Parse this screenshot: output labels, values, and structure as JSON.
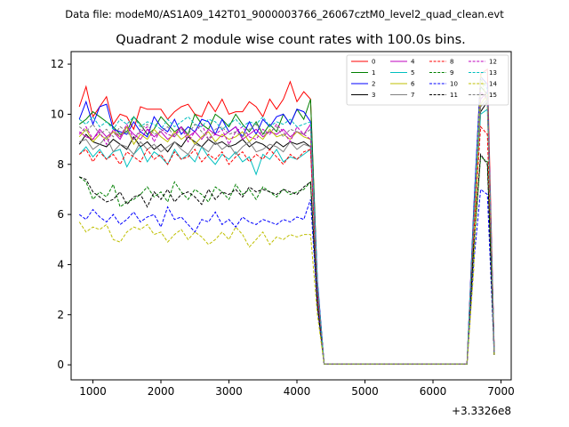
{
  "chart_data": {
    "type": "line",
    "suptitle": "Data file: modeM0/AS1A09_142T01_9000003766_26067cztM0_level2_quad_clean.evt",
    "title": "Quadrant 2 module wise count rates with 100.0s bins.",
    "xlabel": "",
    "ylabel": "",
    "x_offset_label": "+3.3326e8",
    "xlim": [
      680,
      7150
    ],
    "ylim": [
      -0.6,
      12.5
    ],
    "xticks": [
      1000,
      2000,
      3000,
      4000,
      5000,
      6000,
      7000
    ],
    "yticks": [
      0,
      2,
      4,
      6,
      8,
      10,
      12
    ],
    "grid": false,
    "legend_position": "top-right",
    "x": [
      800,
      900,
      1000,
      1100,
      1200,
      1300,
      1400,
      1500,
      1600,
      1700,
      1800,
      1900,
      2000,
      2100,
      2200,
      2300,
      2400,
      2500,
      2600,
      2700,
      2800,
      2900,
      3000,
      3100,
      3200,
      3300,
      3400,
      3500,
      3600,
      3700,
      3800,
      3900,
      4000,
      4100,
      4200,
      4300,
      4400,
      4500,
      4600,
      4700,
      4800,
      4900,
      5000,
      5100,
      5200,
      5300,
      5400,
      5500,
      5600,
      5700,
      5800,
      5900,
      6000,
      6100,
      6200,
      6300,
      6400,
      6500,
      6600,
      6700,
      6800,
      6900
    ],
    "series": [
      {
        "name": "0",
        "color": "#ff0000",
        "dash": "solid",
        "values": [
          10.3,
          11.1,
          9.9,
          10.3,
          10.7,
          9.6,
          10.0,
          9.9,
          9.4,
          10.3,
          10.2,
          10.2,
          10.2,
          9.8,
          10.1,
          10.3,
          10.4,
          10.0,
          9.9,
          10.5,
          10.1,
          10.6,
          10.0,
          10.1,
          10.1,
          10.5,
          10.3,
          9.9,
          10.6,
          10.2,
          10.6,
          11.3,
          10.5,
          10.9,
          10.6,
          3.2,
          0.03,
          0.03,
          0.03,
          0.03,
          0.03,
          0.03,
          0.03,
          0.03,
          0.03,
          0.03,
          0.03,
          0.03,
          0.03,
          0.03,
          0.03,
          0.03,
          0.03,
          0.03,
          0.03,
          0.03,
          0.03,
          0.03,
          6.2,
          11.6,
          11.8,
          0.6
        ]
      },
      {
        "name": "1",
        "color": "#008000",
        "dash": "solid",
        "values": [
          9.6,
          9.8,
          10.1,
          9.9,
          9.7,
          9.5,
          9.2,
          9.3,
          9.9,
          9.6,
          9.2,
          9.4,
          9.9,
          9.6,
          9.3,
          9.5,
          9.2,
          10.0,
          9.6,
          9.4,
          10.0,
          9.8,
          9.5,
          10.0,
          9.6,
          9.3,
          9.7,
          9.2,
          9.6,
          9.3,
          10.0,
          9.6,
          10.2,
          9.8,
          10.6,
          3.3,
          0.03,
          0.03,
          0.03,
          0.03,
          0.03,
          0.03,
          0.03,
          0.03,
          0.03,
          0.03,
          0.03,
          0.03,
          0.03,
          0.03,
          0.03,
          0.03,
          0.03,
          0.03,
          0.03,
          0.03,
          0.03,
          0.03,
          6.0,
          11.1,
          10.8,
          0.5
        ]
      },
      {
        "name": "2",
        "color": "#0000ff",
        "dash": "solid",
        "values": [
          9.8,
          10.5,
          9.6,
          10.3,
          10.4,
          9.4,
          9.3,
          9.2,
          9.7,
          9.3,
          9.1,
          9.9,
          9.5,
          9.3,
          9.8,
          9.2,
          9.5,
          9.3,
          9.8,
          9.7,
          9.2,
          9.8,
          9.3,
          9.5,
          9.1,
          9.7,
          9.2,
          9.8,
          9.5,
          9.9,
          10.0,
          9.6,
          10.2,
          10.1,
          9.7,
          3.4,
          0.03,
          0.03,
          0.03,
          0.03,
          0.03,
          0.03,
          0.03,
          0.03,
          0.03,
          0.03,
          0.03,
          0.03,
          0.03,
          0.03,
          0.03,
          0.03,
          0.03,
          0.03,
          0.03,
          0.03,
          0.03,
          0.03,
          6.3,
          11.5,
          11.2,
          0.5
        ]
      },
      {
        "name": "3",
        "color": "#000000",
        "dash": "solid",
        "values": [
          8.8,
          9.2,
          8.9,
          8.8,
          8.7,
          9.0,
          8.8,
          8.6,
          9.1,
          8.7,
          8.9,
          8.6,
          8.8,
          8.5,
          8.9,
          8.7,
          9.1,
          8.9,
          8.7,
          9.0,
          8.8,
          8.9,
          8.7,
          8.8,
          9.0,
          8.7,
          8.9,
          8.8,
          8.6,
          8.9,
          8.7,
          8.9,
          8.8,
          8.9,
          8.7,
          2.9,
          0.03,
          0.03,
          0.03,
          0.03,
          0.03,
          0.03,
          0.03,
          0.03,
          0.03,
          0.03,
          0.03,
          0.03,
          0.03,
          0.03,
          0.03,
          0.03,
          0.03,
          0.03,
          0.03,
          0.03,
          0.03,
          0.03,
          5.5,
          10.1,
          10.5,
          0.4
        ]
      },
      {
        "name": "4",
        "color": "#bf00bf",
        "dash": "solid",
        "values": [
          9.3,
          9.1,
          9.0,
          9.4,
          9.1,
          9.3,
          9.0,
          9.5,
          9.2,
          9.0,
          9.4,
          9.1,
          9.3,
          9.0,
          9.2,
          9.5,
          9.1,
          9.3,
          9.0,
          9.4,
          9.2,
          9.1,
          9.3,
          9.5,
          9.0,
          9.2,
          9.4,
          9.1,
          9.3,
          9.2,
          9.4,
          9.1,
          9.3,
          9.2,
          9.6,
          3.1,
          0.03,
          0.03,
          0.03,
          0.03,
          0.03,
          0.03,
          0.03,
          0.03,
          0.03,
          0.03,
          0.03,
          0.03,
          0.03,
          0.03,
          0.03,
          0.03,
          0.03,
          0.03,
          0.03,
          0.03,
          0.03,
          0.03,
          5.8,
          10.6,
          10.9,
          0.5
        ]
      },
      {
        "name": "5",
        "color": "#00bfbf",
        "dash": "solid",
        "values": [
          8.4,
          8.7,
          8.3,
          8.6,
          8.2,
          8.5,
          8.6,
          7.9,
          8.4,
          8.7,
          8.1,
          8.5,
          8.3,
          8.0,
          8.6,
          8.2,
          8.4,
          8.1,
          8.7,
          8.3,
          8.0,
          8.4,
          8.2,
          8.5,
          8.1,
          8.3,
          7.6,
          8.4,
          8.2,
          8.6,
          8.1,
          8.3,
          8.2,
          8.4,
          8.6,
          2.8,
          0.03,
          0.03,
          0.03,
          0.03,
          0.03,
          0.03,
          0.03,
          0.03,
          0.03,
          0.03,
          0.03,
          0.03,
          0.03,
          0.03,
          0.03,
          0.03,
          0.03,
          0.03,
          0.03,
          0.03,
          0.03,
          0.03,
          5.4,
          10.0,
          10.2,
          0.4
        ]
      },
      {
        "name": "6",
        "color": "#bfbf00",
        "dash": "solid",
        "values": [
          9.1,
          9.4,
          8.9,
          9.2,
          9.0,
          9.3,
          9.1,
          9.5,
          8.8,
          9.2,
          9.0,
          9.4,
          9.1,
          8.9,
          9.3,
          9.0,
          9.2,
          8.8,
          9.1,
          9.3,
          8.9,
          9.2,
          9.0,
          9.1,
          9.3,
          8.9,
          9.2,
          9.0,
          9.4,
          9.1,
          9.2,
          9.0,
          9.3,
          9.1,
          9.0,
          3.0,
          0.03,
          0.03,
          0.03,
          0.03,
          0.03,
          0.03,
          0.03,
          0.03,
          0.03,
          0.03,
          0.03,
          0.03,
          0.03,
          0.03,
          0.03,
          0.03,
          0.03,
          0.03,
          0.03,
          0.03,
          0.03,
          0.03,
          5.7,
          10.4,
          10.8,
          0.5
        ]
      },
      {
        "name": "7",
        "color": "#808080",
        "dash": "solid",
        "values": [
          8.9,
          9.0,
          8.6,
          8.8,
          9.1,
          8.5,
          8.8,
          8.7,
          8.4,
          8.9,
          8.6,
          8.8,
          8.5,
          8.7,
          8.9,
          8.6,
          8.4,
          8.8,
          8.7,
          8.5,
          8.9,
          8.6,
          8.8,
          8.4,
          8.7,
          8.9,
          8.5,
          8.6,
          8.8,
          8.7,
          8.5,
          8.9,
          8.6,
          8.8,
          8.7,
          2.9,
          0.03,
          0.03,
          0.03,
          0.03,
          0.03,
          0.03,
          0.03,
          0.03,
          0.03,
          0.03,
          0.03,
          0.03,
          0.03,
          0.03,
          0.03,
          0.03,
          0.03,
          0.03,
          0.03,
          0.03,
          0.03,
          0.03,
          5.6,
          10.3,
          10.6,
          0.4
        ]
      },
      {
        "name": "8",
        "color": "#ff0000",
        "dash": "dashed",
        "values": [
          8.4,
          8.6,
          8.1,
          8.5,
          8.2,
          8.4,
          8.0,
          8.5,
          8.3,
          8.1,
          8.6,
          8.2,
          8.4,
          8.0,
          8.5,
          8.2,
          8.3,
          8.6,
          8.1,
          8.4,
          8.2,
          8.5,
          8.0,
          8.3,
          8.5,
          8.1,
          8.4,
          8.2,
          8.6,
          8.3,
          8.0,
          8.4,
          8.2,
          8.5,
          8.6,
          2.8,
          0.03,
          0.03,
          0.03,
          0.03,
          0.03,
          0.03,
          0.03,
          0.03,
          0.03,
          0.03,
          0.03,
          0.03,
          0.03,
          0.03,
          0.03,
          0.03,
          0.03,
          0.03,
          0.03,
          0.03,
          0.03,
          0.03,
          5.3,
          9.5,
          9.2,
          0.4
        ]
      },
      {
        "name": "9",
        "color": "#008000",
        "dash": "dashed",
        "values": [
          7.5,
          7.3,
          6.6,
          6.9,
          6.7,
          7.2,
          6.3,
          6.5,
          6.6,
          6.8,
          7.1,
          6.7,
          6.9,
          6.5,
          7.3,
          6.9,
          6.6,
          7.0,
          6.8,
          6.5,
          7.1,
          6.9,
          6.6,
          7.2,
          6.8,
          7.0,
          6.6,
          7.1,
          6.9,
          6.7,
          7.0,
          6.8,
          6.9,
          7.0,
          7.3,
          2.4,
          0.03,
          0.03,
          0.03,
          0.03,
          0.03,
          0.03,
          0.03,
          0.03,
          0.03,
          0.03,
          0.03,
          0.03,
          0.03,
          0.03,
          0.03,
          0.03,
          0.03,
          0.03,
          0.03,
          0.03,
          0.03,
          0.03,
          4.6,
          8.3,
          8.1,
          0.4
        ]
      },
      {
        "name": "10",
        "color": "#0000ff",
        "dash": "dashed",
        "values": [
          6.0,
          5.8,
          6.2,
          5.9,
          5.7,
          6.0,
          5.6,
          5.8,
          6.1,
          5.7,
          5.9,
          6.0,
          5.5,
          6.3,
          5.8,
          5.9,
          5.6,
          5.3,
          5.8,
          5.7,
          6.1,
          5.6,
          5.8,
          5.5,
          5.9,
          5.7,
          5.6,
          5.8,
          5.7,
          5.6,
          5.8,
          5.7,
          5.9,
          5.8,
          6.6,
          2.3,
          0.03,
          0.03,
          0.03,
          0.03,
          0.03,
          0.03,
          0.03,
          0.03,
          0.03,
          0.03,
          0.03,
          0.03,
          0.03,
          0.03,
          0.03,
          0.03,
          0.03,
          0.03,
          0.03,
          0.03,
          0.03,
          0.03,
          4.1,
          7.0,
          6.8,
          0.4
        ]
      },
      {
        "name": "11",
        "color": "#000000",
        "dash": "dashed",
        "values": [
          7.5,
          7.4,
          6.9,
          6.7,
          6.5,
          6.6,
          6.9,
          6.4,
          6.7,
          6.8,
          6.3,
          6.9,
          6.6,
          7.0,
          6.5,
          6.8,
          6.9,
          6.7,
          6.4,
          7.0,
          6.6,
          6.9,
          6.8,
          7.0,
          6.7,
          7.1,
          6.9,
          7.0,
          6.9,
          6.8,
          7.0,
          6.9,
          6.8,
          7.1,
          7.3,
          2.4,
          0.03,
          0.03,
          0.03,
          0.03,
          0.03,
          0.03,
          0.03,
          0.03,
          0.03,
          0.03,
          0.03,
          0.03,
          0.03,
          0.03,
          0.03,
          0.03,
          0.03,
          0.03,
          0.03,
          0.03,
          0.03,
          0.03,
          4.8,
          8.4,
          8.0,
          0.4
        ]
      },
      {
        "name": "12",
        "color": "#bf00bf",
        "dash": "dashed",
        "values": [
          9.2,
          9.5,
          9.0,
          9.3,
          8.8,
          9.4,
          9.1,
          9.6,
          9.0,
          9.3,
          9.5,
          8.9,
          9.4,
          9.2,
          9.1,
          9.5,
          8.9,
          9.3,
          9.6,
          9.0,
          9.2,
          9.4,
          8.8,
          9.3,
          9.5,
          9.1,
          9.0,
          9.4,
          9.2,
          9.6,
          9.3,
          8.9,
          9.5,
          9.2,
          9.0,
          3.1,
          0.03,
          0.03,
          0.03,
          0.03,
          0.03,
          0.03,
          0.03,
          0.03,
          0.03,
          0.03,
          0.03,
          0.03,
          0.03,
          0.03,
          0.03,
          0.03,
          0.03,
          0.03,
          0.03,
          0.03,
          0.03,
          0.03,
          5.9,
          10.9,
          10.6,
          0.5
        ]
      },
      {
        "name": "13",
        "color": "#00bfbf",
        "dash": "dashed",
        "values": [
          9.8,
          9.6,
          9.9,
          9.5,
          9.7,
          9.4,
          9.8,
          9.6,
          9.9,
          9.5,
          9.7,
          9.6,
          9.4,
          9.8,
          9.5,
          9.7,
          9.9,
          9.6,
          9.5,
          9.8,
          9.7,
          9.4,
          9.6,
          9.8,
          9.5,
          9.7,
          9.6,
          9.9,
          9.5,
          9.7,
          9.6,
          9.8,
          9.5,
          9.6,
          9.7,
          3.3,
          0.03,
          0.03,
          0.03,
          0.03,
          0.03,
          0.03,
          0.03,
          0.03,
          0.03,
          0.03,
          0.03,
          0.03,
          0.03,
          0.03,
          0.03,
          0.03,
          0.03,
          0.03,
          0.03,
          0.03,
          0.03,
          0.03,
          6.1,
          11.4,
          11.0,
          0.5
        ]
      },
      {
        "name": "14",
        "color": "#bfbf00",
        "dash": "dashed",
        "values": [
          5.7,
          5.3,
          5.5,
          5.4,
          5.6,
          5.0,
          4.9,
          5.3,
          5.5,
          5.4,
          5.6,
          5.2,
          5.3,
          4.9,
          5.2,
          5.4,
          5.0,
          5.3,
          5.1,
          4.8,
          5.0,
          5.3,
          5.0,
          5.5,
          5.2,
          4.7,
          5.0,
          5.3,
          4.8,
          5.1,
          5.0,
          5.2,
          5.1,
          5.2,
          5.2,
          2.0,
          0.03,
          0.03,
          0.03,
          0.03,
          0.03,
          0.03,
          0.03,
          0.03,
          0.03,
          0.03,
          0.03,
          0.03,
          0.03,
          0.03,
          0.03,
          0.03,
          0.03,
          0.03,
          0.03,
          0.03,
          0.03,
          0.03,
          3.8,
          11.6,
          10.4,
          0.4
        ]
      },
      {
        "name": "15",
        "color": "#808080",
        "dash": "dashed",
        "values": [
          9.5,
          9.3,
          9.6,
          9.2,
          9.4,
          9.1,
          9.5,
          9.3,
          9.0,
          9.4,
          9.6,
          9.2,
          9.3,
          9.5,
          9.1,
          9.4,
          9.2,
          9.6,
          9.3,
          9.0,
          9.4,
          9.5,
          9.2,
          9.3,
          9.1,
          9.4,
          9.6,
          9.2,
          9.3,
          9.5,
          9.1,
          9.4,
          9.3,
          9.2,
          9.4,
          3.2,
          0.03,
          0.03,
          0.03,
          0.03,
          0.03,
          0.03,
          0.03,
          0.03,
          0.03,
          0.03,
          0.03,
          0.03,
          0.03,
          0.03,
          0.03,
          0.03,
          0.03,
          0.03,
          0.03,
          0.03,
          0.03,
          0.03,
          5.9,
          10.8,
          10.7,
          0.5
        ]
      }
    ]
  }
}
